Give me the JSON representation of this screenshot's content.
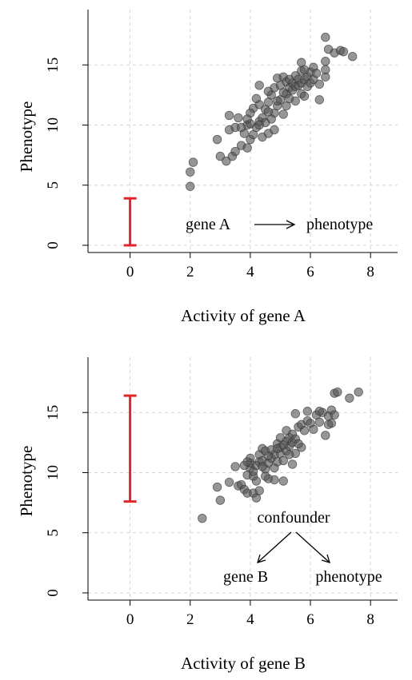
{
  "chart_data": [
    {
      "type": "scatter",
      "xlabel": "Activity of gene A",
      "ylabel": "Phenotype",
      "xlim": [
        -1.4,
        8.9
      ],
      "ylim": [
        -0.6,
        19.6
      ],
      "xticks": [
        0,
        2,
        4,
        6,
        8
      ],
      "yticks": [
        0,
        5,
        10,
        15
      ],
      "grid": true,
      "error_bar": {
        "x": 0,
        "low": 0.0,
        "high": 3.9,
        "color": "#e3242b"
      },
      "annotation": {
        "cause": "gene A",
        "effect": "phenotype"
      },
      "points": [
        [
          2.0,
          4.9
        ],
        [
          2.0,
          6.1
        ],
        [
          2.1,
          6.9
        ],
        [
          2.9,
          8.8
        ],
        [
          3.0,
          7.4
        ],
        [
          3.2,
          7.0
        ],
        [
          3.4,
          7.4
        ],
        [
          3.5,
          7.8
        ],
        [
          3.7,
          8.3
        ],
        [
          3.9,
          8.1
        ],
        [
          3.3,
          9.6
        ],
        [
          3.5,
          9.8
        ],
        [
          3.3,
          10.8
        ],
        [
          3.6,
          10.6
        ],
        [
          3.9,
          10.0
        ],
        [
          3.8,
          9.3
        ],
        [
          4.0,
          8.8
        ],
        [
          4.1,
          9.2
        ],
        [
          4.2,
          9.8
        ],
        [
          4.3,
          10.3
        ],
        [
          4.4,
          9.0
        ],
        [
          4.4,
          10.6
        ],
        [
          4.1,
          11.4
        ],
        [
          4.3,
          11.7
        ],
        [
          4.5,
          11.3
        ],
        [
          4.6,
          11.9
        ],
        [
          4.2,
          12.2
        ],
        [
          4.7,
          12.5
        ],
        [
          4.8,
          11.0
        ],
        [
          4.9,
          11.6
        ],
        [
          5.0,
          12.1
        ],
        [
          5.1,
          10.9
        ],
        [
          5.2,
          11.6
        ],
        [
          4.3,
          13.3
        ],
        [
          4.8,
          13.1
        ],
        [
          4.9,
          13.9
        ],
        [
          5.0,
          13.3
        ],
        [
          5.1,
          14.0
        ],
        [
          5.2,
          13.6
        ],
        [
          5.2,
          12.6
        ],
        [
          5.3,
          13.1
        ],
        [
          5.3,
          12.2
        ],
        [
          5.4,
          13.5
        ],
        [
          5.4,
          12.9
        ],
        [
          5.5,
          13.2
        ],
        [
          5.5,
          14.1
        ],
        [
          5.6,
          13.8
        ],
        [
          5.6,
          13.3
        ],
        [
          5.7,
          12.6
        ],
        [
          5.7,
          13.5
        ],
        [
          5.7,
          14.5
        ],
        [
          5.8,
          13.8
        ],
        [
          5.8,
          12.4
        ],
        [
          5.9,
          13.2
        ],
        [
          5.9,
          14.0
        ],
        [
          6.0,
          13.5
        ],
        [
          6.0,
          14.4
        ],
        [
          6.1,
          13.8
        ],
        [
          6.1,
          14.8
        ],
        [
          6.2,
          14.3
        ],
        [
          5.7,
          15.2
        ],
        [
          6.3,
          12.1
        ],
        [
          6.3,
          13.4
        ],
        [
          6.5,
          14.0
        ],
        [
          6.5,
          14.6
        ],
        [
          6.5,
          15.3
        ],
        [
          6.5,
          17.3
        ],
        [
          6.6,
          16.3
        ],
        [
          6.8,
          16.0
        ],
        [
          7.0,
          16.2
        ],
        [
          7.1,
          16.1
        ],
        [
          7.4,
          15.7
        ],
        [
          4.6,
          9.3
        ],
        [
          4.8,
          9.6
        ],
        [
          4.5,
          10.2
        ],
        [
          4.0,
          10.1
        ],
        [
          4.7,
          10.5
        ],
        [
          5.1,
          12.7
        ],
        [
          4.9,
          12.0
        ],
        [
          4.6,
          12.8
        ],
        [
          4.3,
          10.0
        ],
        [
          4.6,
          11.1
        ],
        [
          4.0,
          11.0
        ],
        [
          5.3,
          13.8
        ],
        [
          5.5,
          12.0
        ],
        [
          5.8,
          14.6
        ],
        [
          3.7,
          9.8
        ],
        [
          3.9,
          10.5
        ]
      ]
    },
    {
      "type": "scatter",
      "xlabel": "Activity of gene B",
      "ylabel": "Phenotype",
      "xlim": [
        -1.4,
        8.9
      ],
      "ylim": [
        -0.6,
        19.6
      ],
      "xticks": [
        0,
        2,
        4,
        6,
        8
      ],
      "yticks": [
        0,
        5,
        10,
        15
      ],
      "grid": true,
      "error_bar": {
        "x": 0,
        "low": 7.6,
        "high": 16.4,
        "color": "#e3242b"
      },
      "annotation": {
        "top": "confounder",
        "left": "gene B",
        "right": "phenotype"
      },
      "points": [
        [
          2.4,
          6.2
        ],
        [
          2.9,
          8.8
        ],
        [
          3.0,
          7.7
        ],
        [
          3.3,
          9.2
        ],
        [
          3.5,
          10.5
        ],
        [
          3.6,
          8.9
        ],
        [
          3.7,
          9.0
        ],
        [
          3.8,
          8.6
        ],
        [
          3.9,
          8.3
        ],
        [
          3.9,
          9.8
        ],
        [
          4.0,
          10.4
        ],
        [
          4.0,
          10.8
        ],
        [
          4.1,
          8.3
        ],
        [
          4.1,
          9.7
        ],
        [
          4.1,
          10.1
        ],
        [
          4.2,
          10.6
        ],
        [
          4.2,
          7.9
        ],
        [
          4.3,
          10.9
        ],
        [
          4.3,
          11.5
        ],
        [
          4.4,
          11.0
        ],
        [
          4.4,
          12.0
        ],
        [
          4.5,
          10.3
        ],
        [
          4.5,
          11.8
        ],
        [
          4.6,
          9.5
        ],
        [
          4.6,
          10.8
        ],
        [
          4.7,
          11.2
        ],
        [
          4.7,
          11.9
        ],
        [
          4.8,
          10.4
        ],
        [
          4.8,
          11.5
        ],
        [
          4.9,
          12.4
        ],
        [
          4.9,
          10.9
        ],
        [
          5.0,
          11.6
        ],
        [
          5.0,
          12.1
        ],
        [
          5.0,
          12.9
        ],
        [
          5.1,
          9.3
        ],
        [
          5.1,
          11.0
        ],
        [
          5.2,
          11.8
        ],
        [
          5.2,
          12.6
        ],
        [
          5.3,
          12.9
        ],
        [
          5.3,
          12.2
        ],
        [
          5.4,
          13.2
        ],
        [
          5.4,
          12.5
        ],
        [
          5.5,
          11.6
        ],
        [
          5.5,
          12.8
        ],
        [
          5.6,
          13.8
        ],
        [
          5.7,
          12.1
        ],
        [
          5.7,
          14.0
        ],
        [
          5.8,
          13.5
        ],
        [
          5.9,
          14.3
        ],
        [
          5.9,
          15.1
        ],
        [
          6.0,
          14.1
        ],
        [
          6.1,
          13.6
        ],
        [
          6.2,
          14.8
        ],
        [
          6.3,
          14.2
        ],
        [
          6.4,
          15.0
        ],
        [
          6.5,
          13.1
        ],
        [
          6.6,
          14.7
        ],
        [
          6.7,
          14.1
        ],
        [
          6.7,
          15.2
        ],
        [
          6.8,
          14.8
        ],
        [
          6.8,
          16.6
        ],
        [
          6.9,
          16.7
        ],
        [
          7.3,
          16.2
        ],
        [
          7.6,
          16.7
        ],
        [
          6.6,
          14.0
        ],
        [
          6.3,
          15.1
        ],
        [
          5.5,
          14.9
        ],
        [
          5.2,
          13.5
        ],
        [
          4.9,
          12.0
        ],
        [
          4.5,
          9.7
        ],
        [
          4.2,
          9.3
        ],
        [
          3.8,
          10.6
        ],
        [
          4.0,
          11.2
        ],
        [
          4.6,
          11.4
        ],
        [
          5.3,
          11.5
        ],
        [
          5.6,
          12.4
        ],
        [
          4.4,
          10.5
        ],
        [
          5.1,
          12.3
        ],
        [
          4.8,
          9.4
        ],
        [
          3.9,
          10.9
        ],
        [
          4.3,
          8.5
        ],
        [
          5.4,
          10.7
        ]
      ]
    }
  ]
}
